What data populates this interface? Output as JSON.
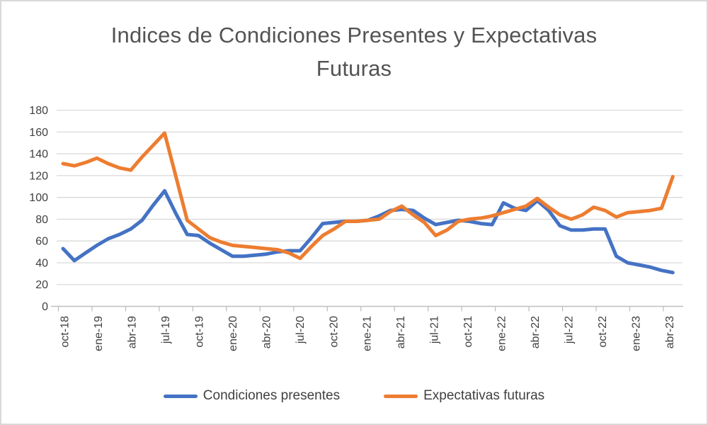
{
  "window": {
    "background": "#FFFFFF",
    "border_color": "#D9D9D9"
  },
  "title": {
    "line1": "Indices de Condiciones Presentes y Expectativas",
    "line2": "Futuras",
    "color": "#535353"
  },
  "legend": {
    "items": [
      {
        "label": "Condiciones presentes",
        "color": "#4472C4"
      },
      {
        "label": "Expectativas futuras",
        "color": "#ED7D31"
      }
    ]
  },
  "chart_data": {
    "type": "line",
    "title": "Indices de Condiciones Presentes y Expectativas Futuras",
    "xlabel": "",
    "ylabel": "",
    "ylim": [
      0,
      180
    ],
    "y_ticks": [
      0,
      20,
      40,
      60,
      80,
      100,
      120,
      140,
      160,
      180
    ],
    "grid": "horizontal",
    "legend_position": "bottom",
    "gridline_color": "#D9D9D9",
    "axis_color": "#BFBFBF",
    "tick_label_color": "#404040",
    "x_tick_labels": [
      "oct-18",
      "ene-19",
      "abr-19",
      "jul-19",
      "oct-19",
      "ene-20",
      "abr-20",
      "jul-20",
      "oct-20",
      "ene-21",
      "abr-21",
      "jul-21",
      "oct-21",
      "ene-22",
      "abr-22",
      "jul-22",
      "oct-22",
      "ene-23",
      "abr-23"
    ],
    "months": [
      "oct-18",
      "nov-18",
      "dic-18",
      "ene-19",
      "feb-19",
      "mar-19",
      "abr-19",
      "may-19",
      "jun-19",
      "jul-19",
      "ago-19",
      "sep-19",
      "oct-19",
      "nov-19",
      "dic-19",
      "ene-20",
      "feb-20",
      "mar-20",
      "abr-20",
      "may-20",
      "jun-20",
      "jul-20",
      "ago-20",
      "sep-20",
      "oct-20",
      "nov-20",
      "dic-20",
      "ene-21",
      "feb-21",
      "mar-21",
      "abr-21",
      "may-21",
      "jun-21",
      "jul-21",
      "ago-21",
      "sep-21",
      "oct-21",
      "nov-21",
      "dic-21",
      "ene-22",
      "feb-22",
      "mar-22",
      "abr-22",
      "may-22",
      "jun-22",
      "jul-22",
      "ago-22",
      "sep-22",
      "oct-22",
      "nov-22",
      "dic-22",
      "ene-23",
      "feb-23",
      "mar-23",
      "abr-23"
    ],
    "series": [
      {
        "name": "Condiciones presentes",
        "color": "#4472C4",
        "values": [
          53,
          42,
          49,
          56,
          62,
          66,
          71,
          79,
          93,
          106,
          85,
          66,
          65,
          58,
          52,
          46,
          46,
          47,
          48,
          50,
          51,
          51,
          63,
          76,
          77,
          78,
          78,
          79,
          83,
          88,
          89,
          88,
          81,
          75,
          77,
          79,
          78,
          76,
          75,
          95,
          90,
          88,
          97,
          88,
          74,
          70,
          70,
          71,
          71,
          46,
          40,
          38,
          36,
          33,
          31
        ]
      },
      {
        "name": "Expectativas futuras",
        "color": "#ED7D31",
        "values": [
          131,
          129,
          132,
          136,
          131,
          127,
          125,
          137,
          148,
          159,
          119,
          79,
          71,
          63,
          59,
          56,
          55,
          54,
          53,
          52,
          49,
          44,
          55,
          65,
          71,
          78,
          78,
          79,
          80,
          87,
          92,
          84,
          77,
          65,
          70,
          78,
          80,
          81,
          83,
          86,
          89,
          92,
          99,
          91,
          84,
          80,
          84,
          91,
          88,
          82,
          86,
          87,
          88,
          90,
          119
        ]
      }
    ]
  }
}
